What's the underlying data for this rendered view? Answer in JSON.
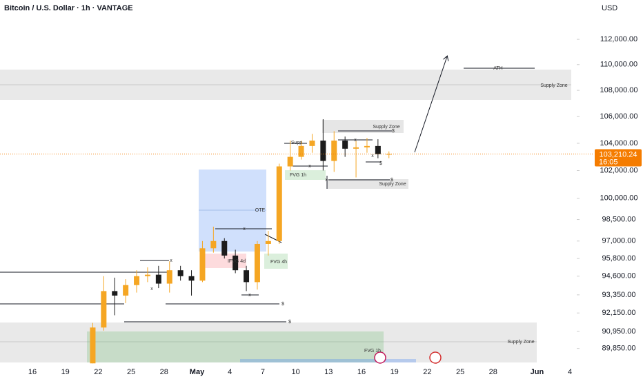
{
  "chart_data": {
    "type": "candlestick",
    "title": "Bitcoin / U.S. Dollar · 1h · VANTAGE",
    "y_axis_label": "USD",
    "categories": [
      null,
      null,
      "16",
      null,
      null,
      "19",
      null,
      null,
      "22",
      null,
      null,
      "25",
      null,
      null,
      "28",
      null,
      null,
      "May",
      null,
      null,
      "4",
      null,
      null,
      "7",
      null,
      null,
      "10",
      null,
      null,
      "13",
      null,
      null,
      "16",
      null,
      null,
      "19",
      null,
      null,
      "22",
      null,
      null,
      "25",
      null,
      null,
      "28",
      null,
      null,
      null,
      "Jun",
      null,
      null,
      "4"
    ],
    "open": [
      null,
      null,
      null,
      null,
      null,
      null,
      null,
      88900,
      91200,
      93600,
      93300,
      94000,
      94600,
      94700,
      94100,
      95000,
      94600,
      94300,
      96500,
      97000,
      96000,
      95000,
      94200,
      96800,
      97000,
      102300,
      103000,
      103800,
      104200,
      102700,
      104200,
      103600,
      103700,
      103800,
      103200,
      null,
      null,
      null,
      null,
      null,
      null,
      null,
      null,
      null,
      null,
      null,
      null,
      null,
      null,
      null,
      null,
      null
    ],
    "high": [
      null,
      null,
      null,
      null,
      null,
      null,
      null,
      91500,
      94600,
      94500,
      94400,
      95000,
      95200,
      95300,
      95600,
      95300,
      95000,
      97000,
      98000,
      97200,
      96400,
      95300,
      97000,
      97700,
      102500,
      104200,
      104200,
      104700,
      105800,
      104900,
      104500,
      104200,
      104400,
      104300,
      103400,
      null,
      null,
      null,
      null,
      null,
      null,
      null,
      null,
      null,
      null,
      null,
      null,
      null,
      null,
      null,
      null,
      null
    ],
    "low": [
      null,
      null,
      null,
      null,
      null,
      null,
      null,
      88900,
      91000,
      92000,
      92800,
      93500,
      94200,
      93800,
      93500,
      94300,
      93300,
      94200,
      96200,
      95800,
      94800,
      93600,
      93700,
      96000,
      96800,
      102000,
      102800,
      103300,
      102000,
      101900,
      103000,
      101500,
      103300,
      102900,
      102900,
      null,
      null,
      null,
      null,
      null,
      null,
      null,
      null,
      null,
      null,
      null,
      null,
      null,
      null,
      null,
      null,
      null
    ],
    "close": [
      null,
      null,
      null,
      null,
      null,
      null,
      null,
      91200,
      93600,
      93300,
      94000,
      94600,
      94700,
      94100,
      95000,
      94600,
      94300,
      96500,
      97000,
      96000,
      95000,
      94200,
      96800,
      97000,
      102300,
      103000,
      103800,
      104200,
      102700,
      104200,
      103600,
      103700,
      103800,
      103200,
      103210,
      null,
      null,
      null,
      null,
      null,
      null,
      null,
      null,
      null,
      null,
      null,
      null,
      null,
      null,
      null,
      null,
      null
    ],
    "up_color": "#f5a623",
    "down_color": "#1c1c1c",
    "ylim": [
      89000,
      113500
    ],
    "log_scale": true,
    "yticks": [
      {
        "value": 112000,
        "label": "112,000.00"
      },
      {
        "value": 110000,
        "label": "110,000.00"
      },
      {
        "value": 108000,
        "label": "108,000.00"
      },
      {
        "value": 106000,
        "label": "106,000.00"
      },
      {
        "value": 104000,
        "label": "104,000.00"
      },
      {
        "value": 102000,
        "label": "102,000.00"
      },
      {
        "value": 100000,
        "label": "100,000.00"
      },
      {
        "value": 98500,
        "label": "98,500.00"
      },
      {
        "value": 97000,
        "label": "97,000.00"
      },
      {
        "value": 95800,
        "label": "95,800.00"
      },
      {
        "value": 94600,
        "label": "94,600.00"
      },
      {
        "value": 93350,
        "label": "93,350.00"
      },
      {
        "value": 92150,
        "label": "92,150.00"
      },
      {
        "value": 90950,
        "label": "90,950.00"
      },
      {
        "value": 89850,
        "label": "89,850.00"
      }
    ],
    "last_price": {
      "value": 103210.24,
      "label": "103,210.24"
    },
    "countdown": "16:05",
    "price_line_color": "#f57c00",
    "annotations": [
      "Supply Zone",
      "ATH",
      "Supply Zone",
      "$",
      "Supp",
      "FVG 1h",
      "$",
      "Supply Zone",
      "OTE",
      "x",
      "x",
      "IFVG 4d",
      "FVG 4h",
      "x",
      "$",
      "$",
      "Supply Zone",
      "FVG 1h",
      "x",
      "x",
      "x",
      "$",
      "x",
      "x"
    ]
  }
}
